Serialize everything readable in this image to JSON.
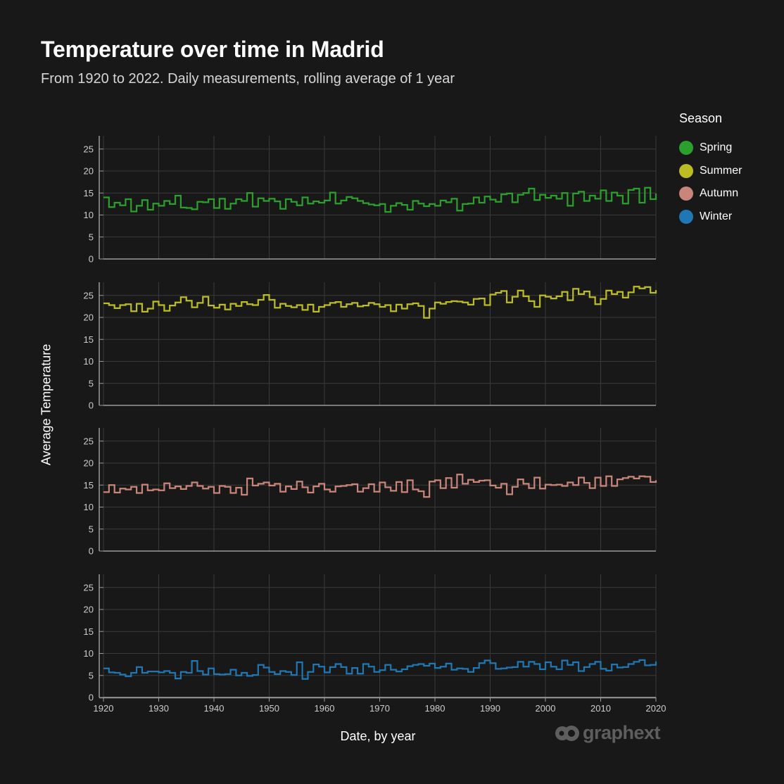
{
  "title": "Temperature over time in Madrid",
  "subtitle": "From 1920 to 2022. Daily measurements, rolling average of 1 year",
  "legend": {
    "title": "Season"
  },
  "brand": "graphext",
  "colors": {
    "background": "#181818",
    "grid": "#3a3a3a",
    "axis": "#9a9a9a"
  },
  "chart_data": {
    "type": "line",
    "step": true,
    "facets": "rows by season",
    "xlabel": "Date, by year",
    "ylabel": "Average Temperature",
    "xlim": [
      1920,
      2020
    ],
    "ylim": [
      0,
      28
    ],
    "x_ticks": [
      1920,
      1930,
      1940,
      1950,
      1960,
      1970,
      1980,
      1990,
      2000,
      2010,
      2020
    ],
    "y_ticks": [
      0,
      5,
      10,
      15,
      20,
      25
    ],
    "grid": true,
    "legend_position": "right",
    "x": [
      1921,
      1922,
      1923,
      1924,
      1925,
      1926,
      1927,
      1928,
      1929,
      1930,
      1931,
      1932,
      1933,
      1934,
      1935,
      1936,
      1937,
      1938,
      1939,
      1940,
      1941,
      1942,
      1943,
      1944,
      1945,
      1946,
      1947,
      1948,
      1949,
      1950,
      1951,
      1952,
      1953,
      1954,
      1955,
      1956,
      1957,
      1958,
      1959,
      1960,
      1961,
      1962,
      1963,
      1964,
      1965,
      1966,
      1967,
      1968,
      1969,
      1970,
      1971,
      1972,
      1973,
      1974,
      1975,
      1976,
      1977,
      1978,
      1979,
      1980,
      1981,
      1982,
      1983,
      1984,
      1985,
      1986,
      1987,
      1988,
      1989,
      1990,
      1991,
      1992,
      1993,
      1994,
      1995,
      1996,
      1997,
      1998,
      1999,
      2000,
      2001,
      2002,
      2003,
      2004,
      2005,
      2006,
      2007,
      2008,
      2009,
      2010,
      2011,
      2012,
      2013,
      2014,
      2015,
      2016,
      2017,
      2018,
      2019,
      2020
    ],
    "series": [
      {
        "name": "Spring",
        "color": "#2ca02c",
        "values": [
          14.0,
          11.8,
          12.8,
          12.2,
          13.6,
          10.8,
          12.1,
          13.4,
          11.2,
          12.6,
          12.1,
          13.2,
          12.5,
          14.4,
          11.7,
          11.6,
          11.3,
          13.0,
          12.9,
          13.6,
          11.6,
          13.7,
          11.4,
          12.6,
          13.6,
          13.2,
          15.0,
          11.9,
          13.8,
          13.2,
          13.7,
          13.1,
          11.4,
          13.6,
          13.0,
          12.2,
          14.0,
          12.6,
          13.1,
          12.8,
          13.3,
          15.1,
          12.6,
          13.3,
          14.1,
          13.8,
          13.2,
          12.7,
          12.4,
          12.2,
          12.5,
          10.7,
          12.1,
          12.7,
          12.3,
          11.2,
          13.2,
          12.6,
          12.0,
          12.5,
          12.1,
          13.3,
          12.9,
          13.7,
          11.0,
          12.5,
          12.6,
          14.0,
          12.8,
          14.2,
          13.5,
          13.0,
          14.7,
          14.9,
          12.9,
          14.6,
          15.0,
          16.0,
          13.4,
          14.6,
          13.9,
          14.4,
          13.7,
          15.0,
          12.1,
          14.9,
          15.3,
          13.2,
          14.4,
          13.7,
          15.6,
          13.2,
          15.1,
          14.4,
          12.6,
          15.7,
          16.0,
          12.8,
          16.2,
          13.6
        ],
        "label_end": 14.9
      },
      {
        "name": "Summer",
        "color": "#bcbd22",
        "values": [
          23.2,
          22.8,
          22.1,
          22.8,
          23.0,
          21.4,
          23.1,
          21.3,
          22.0,
          23.6,
          22.8,
          21.5,
          22.7,
          23.4,
          24.6,
          23.8,
          22.3,
          23.3,
          24.7,
          22.7,
          22.2,
          22.9,
          21.8,
          23.1,
          22.6,
          23.5,
          23.0,
          22.8,
          24.0,
          25.1,
          24.0,
          22.2,
          23.1,
          22.6,
          22.3,
          22.8,
          21.7,
          22.9,
          21.3,
          22.4,
          22.8,
          23.3,
          23.5,
          22.4,
          23.0,
          23.3,
          22.5,
          22.7,
          23.3,
          23.0,
          22.4,
          22.8,
          21.4,
          22.9,
          22.0,
          23.0,
          23.2,
          22.6,
          19.9,
          22.0,
          23.4,
          23.1,
          23.5,
          23.7,
          23.6,
          23.4,
          22.9,
          24.2,
          24.3,
          22.8,
          25.2,
          25.6,
          26.0,
          23.4,
          24.7,
          26.1,
          24.8,
          23.7,
          22.4,
          25.0,
          24.7,
          24.3,
          24.8,
          25.8,
          23.9,
          26.5,
          25.3,
          25.9,
          24.6,
          23.0,
          24.2,
          26.1,
          25.3,
          25.8,
          24.5,
          25.7,
          27.0,
          26.6,
          26.9,
          25.6
        ],
        "label_end": 26.2
      },
      {
        "name": "Autumn",
        "color": "#c9857a",
        "values": [
          13.4,
          15.0,
          13.3,
          14.2,
          14.0,
          14.6,
          13.2,
          15.1,
          13.8,
          14.0,
          13.8,
          15.4,
          14.3,
          14.7,
          14.1,
          14.8,
          15.6,
          14.8,
          14.2,
          14.6,
          13.2,
          14.8,
          14.6,
          13.2,
          14.4,
          12.8,
          16.5,
          14.9,
          15.3,
          15.6,
          14.9,
          15.3,
          13.5,
          14.7,
          14.1,
          15.8,
          14.5,
          13.3,
          14.7,
          15.3,
          14.0,
          13.5,
          14.7,
          14.8,
          15.0,
          15.2,
          13.5,
          14.3,
          15.2,
          13.5,
          15.6,
          14.5,
          13.7,
          15.7,
          13.4,
          16.1,
          14.0,
          13.6,
          12.3,
          15.8,
          16.1,
          14.3,
          16.6,
          14.4,
          17.4,
          15.3,
          16.2,
          15.7,
          16.0,
          16.1,
          14.9,
          14.4,
          15.3,
          12.9,
          14.6,
          16.3,
          15.3,
          14.3,
          16.7,
          14.2,
          15.1,
          15.0,
          15.1,
          14.8,
          15.6,
          15.0,
          16.7,
          15.5,
          14.3,
          16.7,
          14.8,
          17.0,
          14.8,
          16.3,
          16.6,
          16.9,
          16.5,
          17.0,
          16.9,
          15.7
        ],
        "label_end": 16.1
      },
      {
        "name": "Winter",
        "color": "#1f77b4",
        "values": [
          6.6,
          5.7,
          5.6,
          5.2,
          4.8,
          5.6,
          6.9,
          5.6,
          5.9,
          5.9,
          5.7,
          6.0,
          5.6,
          4.3,
          5.8,
          5.6,
          8.3,
          6.0,
          5.2,
          6.6,
          5.3,
          5.2,
          5.3,
          6.3,
          5.0,
          5.6,
          4.9,
          5.1,
          7.4,
          6.8,
          5.8,
          5.3,
          6.0,
          5.8,
          5.1,
          8.0,
          4.2,
          5.8,
          7.5,
          7.0,
          5.7,
          6.9,
          7.6,
          6.9,
          5.4,
          6.7,
          5.4,
          7.6,
          7.0,
          5.8,
          6.2,
          7.4,
          6.3,
          5.9,
          6.4,
          7.1,
          7.4,
          7.6,
          7.2,
          7.7,
          6.7,
          7.0,
          7.7,
          6.3,
          6.6,
          6.5,
          5.8,
          6.7,
          7.8,
          8.4,
          7.8,
          6.5,
          6.6,
          6.8,
          6.9,
          8.1,
          7.0,
          8.1,
          7.6,
          6.4,
          8.0,
          7.0,
          6.4,
          8.4,
          7.4,
          8.0,
          6.0,
          6.9,
          7.6,
          8.1,
          6.5,
          6.1,
          7.5,
          6.8,
          6.9,
          7.6,
          8.1,
          8.5,
          7.3,
          7.4
        ],
        "label_end": 8.2
      }
    ]
  }
}
